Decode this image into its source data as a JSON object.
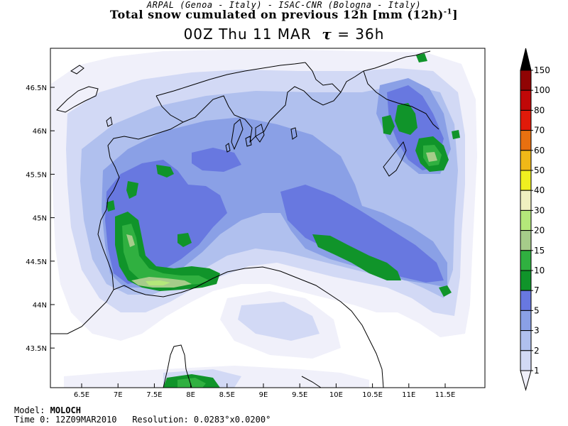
{
  "header": {
    "line1": "ARPAL (Genoa - Italy)  -  ISAC-CNR (Bologna - Italy)",
    "line2_main": "Total snow cumulated on previous 12h [mm (12h)",
    "line2_exp": "-1",
    "line2_end": "]",
    "line3_time": "00Z Thu 11 MAR",
    "line3_tau": "τ",
    "line3_rest": "= 36h"
  },
  "map": {
    "lat_labels": [
      "46.5N",
      "46N",
      "45.5N",
      "45N",
      "44.5N",
      "44N",
      "43.5N"
    ],
    "lon_labels": [
      "6.5E",
      "7E",
      "7.5E",
      "8E",
      "8.5E",
      "9E",
      "9.5E",
      "10E",
      "10.5E",
      "11E",
      "11.5E"
    ]
  },
  "legend": {
    "levels": [
      "1",
      "2",
      "3",
      "5",
      "7",
      "10",
      "15",
      "20",
      "30",
      "40",
      "50",
      "60",
      "70",
      "80",
      "100",
      "150"
    ],
    "colors": [
      "#f0f0fa",
      "#d2d9f5",
      "#b0c0ee",
      "#8aa0e6",
      "#6878e0",
      "#10942a",
      "#30b040",
      "#a6cc8a",
      "#b4e87a",
      "#f0f0c0",
      "#f0f020",
      "#f0b818",
      "#e87010",
      "#e01a0a",
      "#c00808",
      "#900404",
      "#000000"
    ]
  },
  "footer": {
    "model_label": "Model:",
    "model_value": "MOLOCH",
    "time_label": "Time 0:",
    "time_value": "12Z09MAR2010",
    "res_label": "Resolution:",
    "res_value": "0.0283°x0.0200°"
  }
}
